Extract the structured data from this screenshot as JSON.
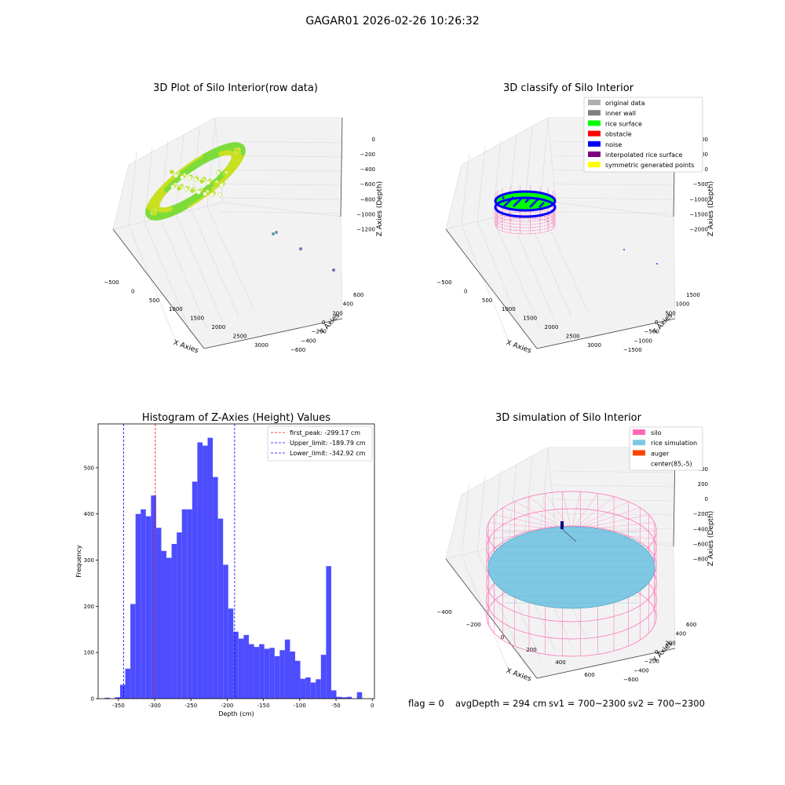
{
  "suptitle": "GAGAR01 2026-02-26 10:26:32",
  "colors": {
    "hist_bar": "#4d4dff",
    "peak_line": "#ff0000",
    "limit_line": "#0000ff",
    "silo": "#ff69b4",
    "rice_sim": "#7ec8e3",
    "auger": "#ff4500",
    "rice_surface": "#00ff00",
    "noise": "#0000ff",
    "yellow_green": "#b5e61d"
  },
  "panels": {
    "raw": {
      "title": "3D Plot of Silo Interior(row data)",
      "xlabel": "X Axies",
      "ylabel": "Y Axies",
      "zlabel": "Z Axies (Depth)",
      "xticks": [
        "−500",
        "0",
        "500",
        "1000",
        "1500",
        "2000",
        "2500",
        "3000"
      ],
      "yticks": [
        "600",
        "400",
        "200",
        "0",
        "−200",
        "−400",
        "−600"
      ],
      "zticks": [
        "0",
        "−200",
        "−400",
        "−600",
        "−800",
        "−1000",
        "−1200"
      ]
    },
    "classify": {
      "title": "3D classify of Silo Interior",
      "xlabel": "X Axies",
      "ylabel": "Y Axies",
      "zlabel": "Z Axies (Depth)",
      "xticks": [
        "−500",
        "0",
        "500",
        "1000",
        "1500",
        "2000",
        "2500",
        "3000"
      ],
      "yticks": [
        "1500",
        "1000",
        "500",
        "0",
        "−500",
        "−1000",
        "−1500"
      ],
      "zticks": [
        "1000",
        "500",
        "0",
        "−500",
        "−1000",
        "−1500",
        "−2000"
      ],
      "legend": [
        {
          "label": "original data",
          "color": "#b0b0b0"
        },
        {
          "label": "inner wall",
          "color": "#808080"
        },
        {
          "label": "rice surface",
          "color": "#00ff00"
        },
        {
          "label": "obstacle",
          "color": "#ff0000"
        },
        {
          "label": "noise",
          "color": "#0000ff"
        },
        {
          "label": "interpolated rice surface",
          "color": "#800080"
        },
        {
          "label": "symmetric generated points",
          "color": "#ffff00"
        }
      ]
    },
    "simulation": {
      "title": "3D simulation of Silo Interior",
      "xlabel": "X Axies",
      "ylabel": "Y Axies",
      "zlabel": "Z Axies (Depth)",
      "xticks": [
        "−400",
        "−200",
        "0",
        "200",
        "400",
        "600"
      ],
      "yticks": [
        "600",
        "400",
        "200",
        "0",
        "−200",
        "−400",
        "−600"
      ],
      "zticks": [
        "400",
        "200",
        "0",
        "−200",
        "−400",
        "−600",
        "−800"
      ],
      "legend": [
        {
          "label": "silo",
          "color": "#ff69b4"
        },
        {
          "label": "rice simulation",
          "color": "#7ec8e3"
        },
        {
          "label": "auger",
          "color": "#ff4500"
        },
        {
          "label": "center(85,-5)",
          "color": ""
        }
      ]
    }
  },
  "chart_data": {
    "type": "bar",
    "title": "Histogram of Z-Axies (Height) Values",
    "xlabel": "Depth (cm)",
    "ylabel": "Frequency",
    "xlim": [
      -378,
      3
    ],
    "ylim": [
      0,
      595
    ],
    "xticks": [
      -350,
      -300,
      -250,
      -200,
      -150,
      -100,
      -50,
      0
    ],
    "yticks": [
      0,
      100,
      200,
      300,
      400,
      500
    ],
    "bin_width": 7.1,
    "bin_start": -369,
    "values": [
      2,
      0,
      3,
      30,
      65,
      205,
      400,
      410,
      395,
      440,
      370,
      320,
      305,
      335,
      360,
      410,
      410,
      470,
      555,
      548,
      565,
      480,
      390,
      290,
      195,
      145,
      130,
      138,
      118,
      112,
      118,
      108,
      110,
      92,
      105,
      128,
      102,
      82,
      43,
      46,
      35,
      42,
      95,
      287,
      18,
      4,
      3,
      4,
      0,
      14
    ],
    "vlines": [
      {
        "name": "first_peak: -299.17 cm",
        "x": -299.17,
        "color": "red"
      },
      {
        "name": "Upper_limit: -189.79 cm",
        "x": -189.79,
        "color": "blue"
      },
      {
        "name": "Lower_limit: -342.92 cm",
        "x": -342.92,
        "color": "blue"
      }
    ],
    "legend_position": "top-right"
  },
  "footer": {
    "flag": "flag = 0",
    "avg": "avgDepth = 294 cm",
    "sv1": "sv1 = 700~2300",
    "sv2": "sv2 = 700~2300"
  }
}
